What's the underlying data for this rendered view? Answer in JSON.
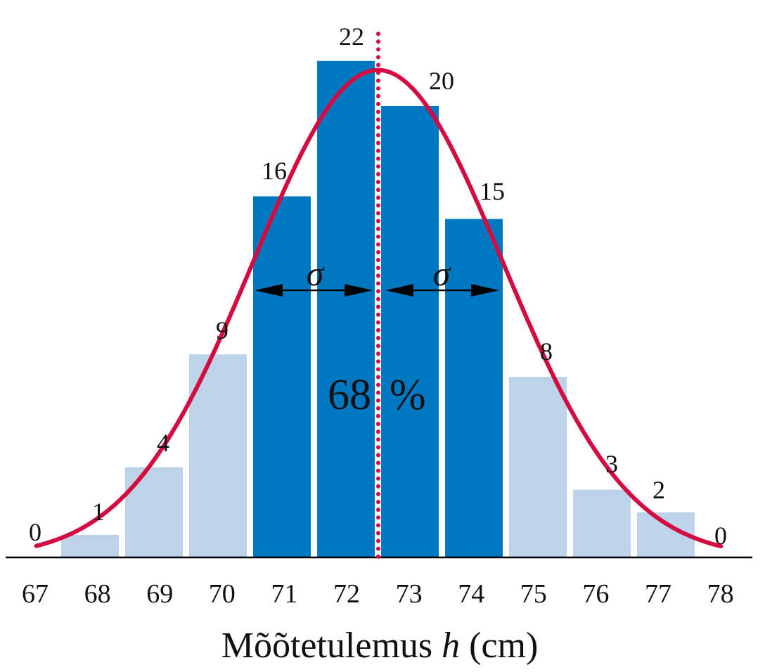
{
  "chart_data": {
    "type": "bar",
    "categories": [
      "67",
      "68",
      "69",
      "70",
      "71",
      "72",
      "73",
      "74",
      "75",
      "76",
      "77",
      "78"
    ],
    "values": [
      0,
      1,
      4,
      9,
      16,
      22,
      20,
      15,
      8,
      3,
      2,
      0
    ],
    "highlighted": [
      "71",
      "72",
      "73",
      "74"
    ],
    "xlabel": {
      "prefix": "Mõõtetulemus ",
      "var": "h",
      "suffix": " (cm)"
    },
    "ylabel": "",
    "title": "",
    "grid": false,
    "normal_curve": {
      "mean": 72.5,
      "sigma": 1.95,
      "peak": 21.6
    },
    "annotations": {
      "sigma_left": "σ",
      "sigma_right": "σ",
      "percent_left": "68",
      "percent_right": "%"
    },
    "colors": {
      "bar": "#bcd3ea",
      "bar_highlight": "#0078c1",
      "curve": "#d40a40",
      "mean_line": "#d40a40",
      "axis": "#000000"
    }
  }
}
